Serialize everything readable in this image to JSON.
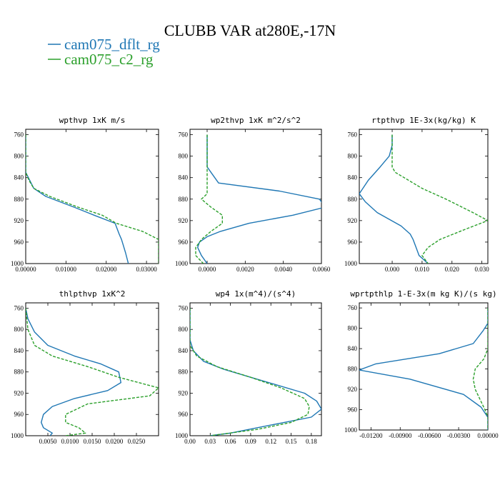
{
  "title": "CLUBB VAR at280E,-17N",
  "legend": [
    {
      "label": "cam075_dflt_rg",
      "color": "#1f77b4",
      "dash": "none"
    },
    {
      "label": "cam075_c2_rg",
      "color": "#2ca02c",
      "dash": "4,2"
    }
  ],
  "chart_data": [
    {
      "type": "line",
      "title": "wpthvp   1xK m/s",
      "ylim": [
        1000,
        750
      ],
      "yticks": [
        760,
        800,
        840,
        880,
        920,
        960,
        1000
      ],
      "ytick_labels": [
        "760",
        "800",
        "840",
        "880",
        "920",
        "960",
        "1000"
      ],
      "xlim": [
        0,
        0.033
      ],
      "xticks": [
        0,
        0.01,
        0.02,
        0.03
      ],
      "xtick_labels": [
        "0.00000",
        "0.01000",
        "0.02000",
        "0.03000"
      ],
      "series": [
        {
          "name": "cam075_dflt_rg",
          "x": [
            0,
            0,
            0,
            0.001,
            0.002,
            0.005,
            0.012,
            0.017,
            0.0222,
            0.0232,
            0.0238,
            0.0242,
            0.0248,
            0.0255
          ],
          "y": [
            760,
            800,
            830,
            845,
            860,
            875,
            895,
            910,
            925,
            945,
            955,
            965,
            980,
            1000
          ]
        },
        {
          "name": "cam075_c2_rg",
          "x": [
            0,
            0,
            0,
            0.0008,
            0.002,
            0.006,
            0.013,
            0.019,
            0.0225,
            0.029,
            0.033,
            0.033,
            0.033
          ],
          "y": [
            760,
            800,
            830,
            845,
            860,
            875,
            895,
            910,
            925,
            940,
            955,
            980,
            1000
          ]
        }
      ]
    },
    {
      "type": "line",
      "title": "wp2thvp   1xK m^2/s^2",
      "ylim": [
        1000,
        750
      ],
      "yticks": [
        760,
        800,
        840,
        880,
        920,
        960,
        1000
      ],
      "ytick_labels": [
        "760",
        "800",
        "840",
        "880",
        "920",
        "960",
        "1000"
      ],
      "xlim": [
        -0.0009,
        0.006
      ],
      "xticks": [
        0,
        0.002,
        0.004,
        0.006
      ],
      "xtick_labels": [
        "0.0000",
        "0.0020",
        "0.0040",
        "0.0060"
      ],
      "series": [
        {
          "name": "cam075_dflt_rg",
          "x": [
            0,
            0,
            0,
            0.0002,
            0.0006,
            0.0038,
            0.0059,
            0.0062,
            0.0045,
            0.0022,
            0.0007,
            0,
            -0.0004,
            -0.0005,
            -0.0003,
            0
          ],
          "y": [
            760,
            800,
            820,
            830,
            850,
            865,
            880,
            895,
            910,
            925,
            940,
            950,
            960,
            970,
            985,
            1000
          ]
        },
        {
          "name": "cam075_c2_rg",
          "x": [
            0,
            0,
            0,
            0,
            -0.0003,
            0.0002,
            0.0008,
            0.0008,
            0.0002,
            -0.0003,
            -0.0006,
            -0.0006,
            -0.0002
          ],
          "y": [
            760,
            800,
            840,
            870,
            880,
            895,
            910,
            925,
            940,
            955,
            970,
            985,
            1000
          ]
        }
      ]
    },
    {
      "type": "line",
      "title": "rtpthvp   1E-3x(kg/kg) K",
      "ylim": [
        1000,
        750
      ],
      "yticks": [
        760,
        800,
        840,
        880,
        920,
        960,
        1000
      ],
      "ytick_labels": [
        "760",
        "800",
        "840",
        "880",
        "920",
        "960",
        "1000"
      ],
      "xlim": [
        -0.011,
        0.032
      ],
      "xticks": [
        0,
        0.01,
        0.02,
        0.03
      ],
      "xtick_labels": [
        "0.000",
        "0.010",
        "0.020",
        "0.030"
      ],
      "series": [
        {
          "name": "cam075_dflt_rg",
          "x": [
            0,
            0,
            -0.001,
            -0.004,
            -0.008,
            -0.011,
            -0.009,
            -0.005,
            0.003,
            0.006,
            0.007,
            0.008,
            0.009,
            0.012
          ],
          "y": [
            760,
            780,
            800,
            820,
            845,
            870,
            885,
            905,
            930,
            945,
            955,
            970,
            985,
            1000
          ]
        },
        {
          "name": "cam075_c2_rg",
          "x": [
            0,
            0,
            0,
            0.001,
            0.004,
            0.01,
            0.018,
            0.027,
            0.032,
            0.025,
            0.016,
            0.012,
            0.01,
            0.012
          ],
          "y": [
            760,
            800,
            820,
            830,
            840,
            860,
            880,
            905,
            920,
            935,
            955,
            970,
            985,
            1000
          ]
        }
      ]
    },
    {
      "type": "line",
      "title": "thlpthvp   1xK^2",
      "ylim": [
        1000,
        750
      ],
      "yticks": [
        760,
        800,
        840,
        880,
        920,
        960,
        1000
      ],
      "ytick_labels": [
        "760",
        "800",
        "840",
        "880",
        "920",
        "960",
        "1000"
      ],
      "xlim": [
        0,
        0.03
      ],
      "xticks": [
        0.005,
        0.01,
        0.015,
        0.02,
        0.025
      ],
      "xtick_labels": [
        "0.0050",
        "0.0100",
        "0.0150",
        "0.0200",
        "0.0250"
      ],
      "series": [
        {
          "name": "cam075_dflt_rg",
          "x": [
            0,
            0.0005,
            0.002,
            0.005,
            0.011,
            0.017,
            0.021,
            0.0215,
            0.0185,
            0.011,
            0.006,
            0.004,
            0.0035,
            0.004,
            0.006,
            0.0055
          ],
          "y": [
            760,
            780,
            805,
            830,
            850,
            865,
            880,
            900,
            915,
            930,
            945,
            960,
            975,
            985,
            995,
            1000
          ]
        },
        {
          "name": "cam075_c2_rg",
          "x": [
            0,
            0.0005,
            0.002,
            0.006,
            0.014,
            0.021,
            0.03,
            0.028,
            0.014,
            0.009,
            0.009,
            0.012,
            0.0135,
            0.009
          ],
          "y": [
            760,
            800,
            830,
            850,
            870,
            890,
            910,
            925,
            940,
            960,
            975,
            985,
            995,
            1000
          ]
        }
      ]
    },
    {
      "type": "line",
      "title": "wp4   1x(m^4)/(s^4)",
      "ylim": [
        1000,
        750
      ],
      "yticks": [
        760,
        800,
        840,
        880,
        920,
        960,
        1000
      ],
      "ytick_labels": [
        "760",
        "800",
        "840",
        "880",
        "920",
        "960",
        "1000"
      ],
      "xlim": [
        0,
        0.195
      ],
      "xticks": [
        0,
        0.03,
        0.06,
        0.09,
        0.12,
        0.15,
        0.18
      ],
      "xtick_labels": [
        "0.00",
        "0.03",
        "0.06",
        "0.09",
        "0.12",
        "0.15",
        "0.18"
      ],
      "series": [
        {
          "name": "cam075_dflt_rg",
          "x": [
            0,
            0,
            0.005,
            0.02,
            0.05,
            0.09,
            0.13,
            0.17,
            0.188,
            0.195,
            0.18,
            0.12,
            0.06,
            0.03
          ],
          "y": [
            760,
            820,
            840,
            860,
            875,
            890,
            905,
            920,
            935,
            950,
            965,
            980,
            995,
            1000
          ]
        },
        {
          "name": "cam075_c2_rg",
          "x": [
            0,
            0,
            0.01,
            0.04,
            0.09,
            0.135,
            0.17,
            0.177,
            0.175,
            0.15,
            0.1,
            0.03
          ],
          "y": [
            760,
            830,
            850,
            870,
            890,
            910,
            930,
            945,
            960,
            975,
            988,
            1000
          ]
        }
      ]
    },
    {
      "type": "line",
      "title": "wprtpthlp   1-E-3x(m kg K)/(s kg)",
      "ylim": [
        1000,
        750
      ],
      "yticks": [
        760,
        800,
        840,
        880,
        920,
        960,
        1000
      ],
      "ytick_labels": [
        "760",
        "800",
        "840",
        "880",
        "920",
        "960",
        "1000"
      ],
      "xlim": [
        -0.0132,
        0
      ],
      "xticks": [
        -0.012,
        -0.009,
        -0.006,
        -0.003,
        0
      ],
      "xtick_labels": [
        "-0.01200",
        "-0.00900",
        "-0.00600",
        "-0.00300",
        "0.00000"
      ],
      "series": [
        {
          "name": "cam075_dflt_rg",
          "x": [
            0,
            0,
            -0.0005,
            -0.0015,
            -0.005,
            -0.0115,
            -0.0132,
            -0.008,
            -0.0025,
            -0.0007,
            0,
            0
          ],
          "y": [
            760,
            790,
            805,
            830,
            850,
            870,
            882,
            900,
            930,
            955,
            975,
            1000
          ]
        },
        {
          "name": "cam075_c2_rg",
          "x": [
            0,
            0,
            -0.0004,
            -0.0013,
            -0.0015,
            -0.0013,
            -0.0008,
            -0.0003,
            0,
            0
          ],
          "y": [
            760,
            840,
            860,
            880,
            900,
            920,
            940,
            960,
            975,
            1000
          ]
        }
      ]
    }
  ]
}
